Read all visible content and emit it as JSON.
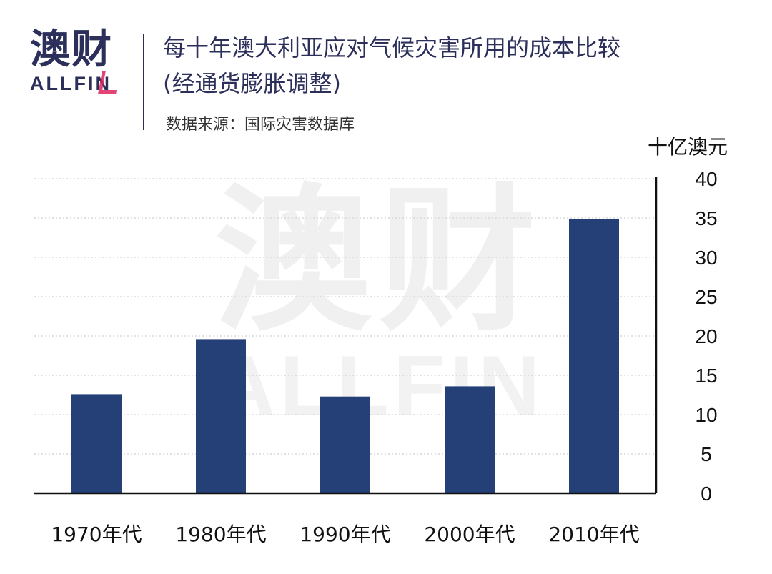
{
  "logo": {
    "cn": "澳财",
    "en": "ALLFIN"
  },
  "header": {
    "title_line1": "每十年澳大利亚应对气候灾害所用的成本比较",
    "title_line2": "(经通货膨胀调整)",
    "source": "数据来源：国际灾害数据库"
  },
  "watermark": {
    "cn": "澳财",
    "en": "ALLFIN"
  },
  "colors": {
    "bar": "#253f77",
    "axis": "#111111",
    "grid": "#d8d8d8",
    "brand": "#2b2f5a"
  },
  "chart_data": {
    "type": "bar",
    "title": "每十年澳大利亚应对气候灾害所用的成本比较 (经通货膨胀调整)",
    "ylabel": "十亿澳元",
    "categories": [
      "1970年代",
      "1980年代",
      "1990年代",
      "2000年代",
      "2010年代"
    ],
    "values": [
      12.6,
      19.6,
      12.3,
      13.6,
      34.9
    ],
    "ylim": [
      0,
      40
    ],
    "yticks": [
      0,
      5,
      10,
      15,
      20,
      25,
      30,
      35,
      40
    ],
    "grid": true,
    "y_axis_side": "right"
  }
}
